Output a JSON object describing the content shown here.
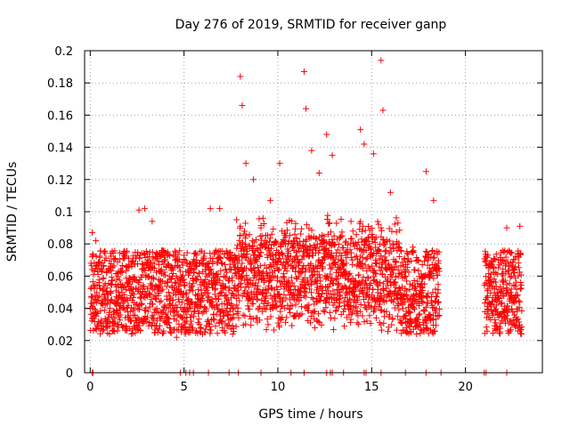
{
  "chart_data": {
    "type": "scatter",
    "title": "Day 276 of 2019, SRMTID for receiver ganp",
    "xlabel": "GPS time / hours",
    "ylabel": "SRMTID / TECUs",
    "xlim": [
      -0.3,
      24.1
    ],
    "ylim": [
      0,
      0.2
    ],
    "xticks": [
      0,
      5,
      10,
      15,
      20
    ],
    "xtick_labels": [
      "0",
      "5",
      "10",
      "15",
      "20"
    ],
    "yticks": [
      0,
      0.02,
      0.04,
      0.06,
      0.08,
      0.1,
      0.12,
      0.14,
      0.16,
      0.18,
      0.2
    ],
    "ytick_labels": [
      "0",
      "0.02",
      "0.04",
      "0.06",
      "0.08",
      "0.1",
      "0.12",
      "0.14",
      "0.16",
      "0.18",
      "0.2"
    ],
    "grid": true,
    "marker": "+",
    "color": "#ff0000",
    "series": [
      {
        "name": "SRMTID",
        "coverage_hours": [
          [
            0.0,
            18.6
          ],
          [
            21.0,
            23.0
          ]
        ],
        "baseline_band": [
          0.02,
          0.08
        ],
        "sample_points": [
          [
            0.1,
            0.087
          ],
          [
            0.3,
            0.082
          ],
          [
            0.5,
            0.064
          ],
          [
            0.8,
            0.047
          ],
          [
            1.1,
            0.055
          ],
          [
            1.4,
            0.039
          ],
          [
            1.8,
            0.071
          ],
          [
            2.2,
            0.052
          ],
          [
            2.6,
            0.101
          ],
          [
            2.9,
            0.102
          ],
          [
            3.3,
            0.094
          ],
          [
            3.7,
            0.044
          ],
          [
            4.1,
            0.031
          ],
          [
            4.6,
            0.022
          ],
          [
            5.0,
            0.058
          ],
          [
            5.4,
            0.036
          ],
          [
            5.9,
            0.044
          ],
          [
            6.4,
            0.102
          ],
          [
            6.9,
            0.102
          ],
          [
            7.4,
            0.071
          ],
          [
            7.8,
            0.095
          ],
          [
            8.0,
            0.184
          ],
          [
            8.1,
            0.166
          ],
          [
            8.3,
            0.13
          ],
          [
            8.7,
            0.12
          ],
          [
            9.1,
            0.09
          ],
          [
            9.6,
            0.107
          ],
          [
            10.1,
            0.13
          ],
          [
            10.5,
            0.069
          ],
          [
            10.9,
            0.086
          ],
          [
            11.4,
            0.187
          ],
          [
            11.5,
            0.164
          ],
          [
            11.8,
            0.138
          ],
          [
            12.2,
            0.124
          ],
          [
            12.6,
            0.148
          ],
          [
            12.9,
            0.135
          ],
          [
            13.4,
            0.07
          ],
          [
            13.9,
            0.094
          ],
          [
            14.4,
            0.151
          ],
          [
            14.6,
            0.142
          ],
          [
            15.1,
            0.136
          ],
          [
            15.5,
            0.194
          ],
          [
            15.6,
            0.163
          ],
          [
            16.0,
            0.112
          ],
          [
            16.4,
            0.093
          ],
          [
            16.8,
            0.064
          ],
          [
            17.2,
            0.078
          ],
          [
            17.9,
            0.125
          ],
          [
            18.3,
            0.107
          ],
          [
            18.6,
            0.063
          ],
          [
            21.2,
            0.052
          ],
          [
            21.6,
            0.031
          ],
          [
            22.0,
            0.038
          ],
          [
            22.2,
            0.09
          ],
          [
            22.6,
            0.062
          ],
          [
            22.9,
            0.091
          ]
        ],
        "zero_points": [
          0.1,
          0.15,
          4.8,
          5.1,
          5.3,
          5.5,
          6.3,
          7.4,
          7.9,
          9.1,
          10.7,
          11.4,
          12.6,
          12.8,
          12.9,
          13.5,
          14.6,
          14.7,
          15.5,
          16.8,
          17.9,
          18.7,
          21.0,
          21.1,
          22.2
        ]
      }
    ]
  }
}
